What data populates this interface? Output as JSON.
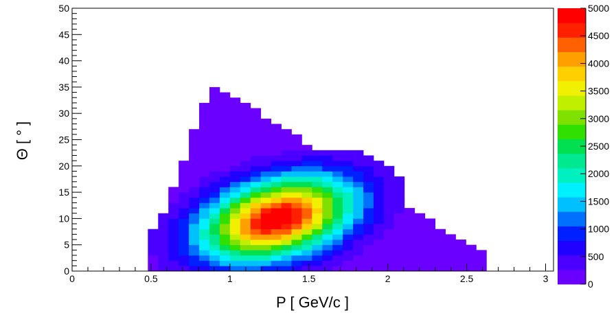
{
  "chart_data": {
    "type": "heatmap",
    "title": "",
    "xlabel": "P [ GeV/c  ]",
    "ylabel": "Θ [ ° ]",
    "xlim": [
      0,
      3.05
    ],
    "ylim": [
      0,
      50
    ],
    "x_ticks": [
      "0",
      "0.5",
      "1",
      "1.5",
      "2",
      "2.5",
      "3"
    ],
    "y_ticks": [
      "0",
      "5",
      "10",
      "15",
      "20",
      "25",
      "30",
      "35",
      "40",
      "45",
      "50"
    ],
    "colorbar": {
      "min": 0,
      "max": 5000,
      "ticks": [
        "0",
        "500",
        "1000",
        "1500",
        "2000",
        "2500",
        "3000",
        "3500",
        "4000",
        "4500",
        "5000"
      ],
      "colors": [
        "#6a00ff",
        "#4b00ff",
        "#2000ff",
        "#0020ff",
        "#0070ff",
        "#00c0ff",
        "#00f0ff",
        "#00f0c0",
        "#00e890",
        "#00e050",
        "#30e000",
        "#80e000",
        "#c0f000",
        "#f0f000",
        "#ffd000",
        "#ffa000",
        "#ff6000",
        "#ff2000",
        "#ff0000"
      ]
    },
    "distribution": {
      "peak_p": 1.3,
      "peak_theta": 10,
      "peak_count": 5000,
      "p_bin_width": 0.065,
      "theta_bin_width": 1.0
    }
  }
}
